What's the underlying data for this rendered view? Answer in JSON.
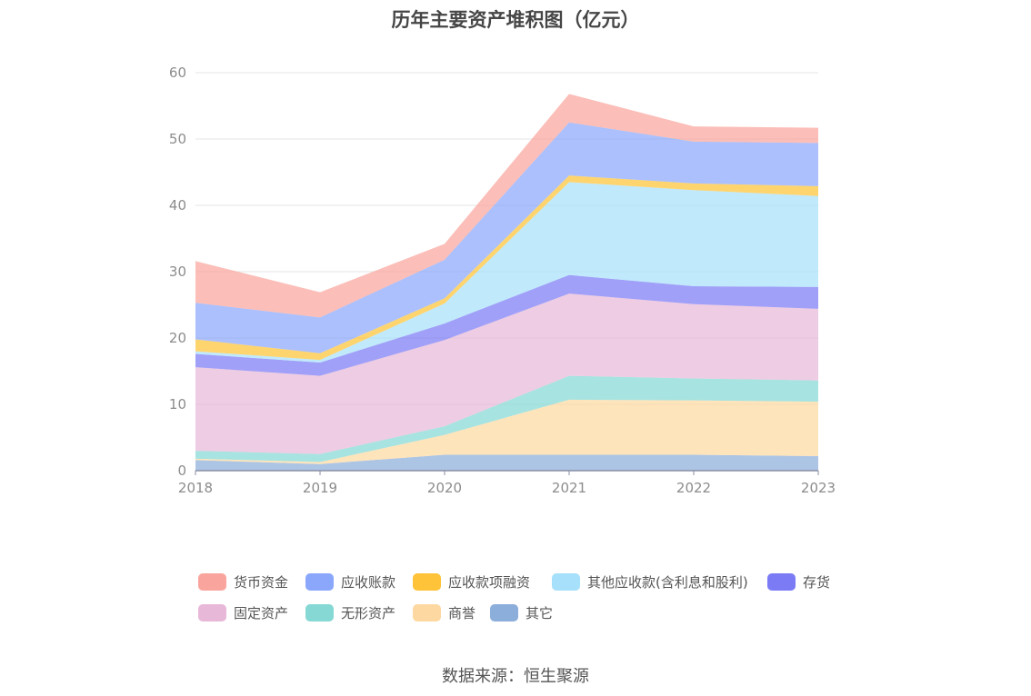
{
  "title": "历年主要资产堆积图（亿元）",
  "source": "数据来源：恒生聚源",
  "colors": {
    "货币资金": "#f9a59d",
    "应收账款": "#8aa7fb",
    "应收款项融资": "#fec338",
    "其他应收款(含利息和股利)": "#a7e0fb",
    "存货": "#7b7cf5",
    "固定资产": "#e8b8d8",
    "无形资产": "#85d8d4",
    "商誉": "#fdd9a1",
    "其它": "#8caedb"
  },
  "chart_data": {
    "type": "area",
    "stacked": true,
    "title": "历年主要资产堆积图（亿元）",
    "categories": [
      "2018",
      "2019",
      "2020",
      "2021",
      "2022",
      "2023"
    ],
    "ylim": [
      0,
      60
    ],
    "yticks": [
      0,
      10,
      20,
      30,
      40,
      50,
      60
    ],
    "grid": true,
    "legend_position": "bottom",
    "series_bottom_to_top": [
      "其它",
      "商誉",
      "无形资产",
      "固定资产",
      "存货",
      "其他应收款(含利息和股利)",
      "应收款项融资",
      "应收账款",
      "货币资金"
    ],
    "series": [
      {
        "name": "货币资金",
        "values": [
          6.3,
          3.8,
          2.4,
          4.3,
          2.3,
          2.3
        ]
      },
      {
        "name": "应收账款",
        "values": [
          5.5,
          5.4,
          5.8,
          8.0,
          6.3,
          6.5
        ]
      },
      {
        "name": "应收款项融资",
        "values": [
          1.8,
          1.0,
          0.8,
          1.0,
          1.0,
          1.5
        ]
      },
      {
        "name": "其他应收款(含利息和股利)",
        "values": [
          0.4,
          0.4,
          3.0,
          14.0,
          14.5,
          13.7
        ]
      },
      {
        "name": "存货",
        "values": [
          2.0,
          2.0,
          2.5,
          2.8,
          2.7,
          3.3
        ]
      },
      {
        "name": "固定资产",
        "values": [
          12.6,
          11.8,
          13.0,
          12.4,
          11.2,
          10.8
        ]
      },
      {
        "name": "无形资产",
        "values": [
          1.2,
          1.2,
          1.3,
          3.6,
          3.3,
          3.2
        ]
      },
      {
        "name": "商誉",
        "values": [
          0.2,
          0.3,
          3.0,
          8.3,
          8.2,
          8.2
        ]
      },
      {
        "name": "其它",
        "values": [
          1.6,
          1.0,
          2.4,
          2.4,
          2.4,
          2.2
        ]
      }
    ]
  },
  "legend": [
    "货币资金",
    "应收账款",
    "应收款项融资",
    "其他应收款(含利息和股利)",
    "存货",
    "固定资产",
    "无形资产",
    "商誉",
    "其它"
  ]
}
